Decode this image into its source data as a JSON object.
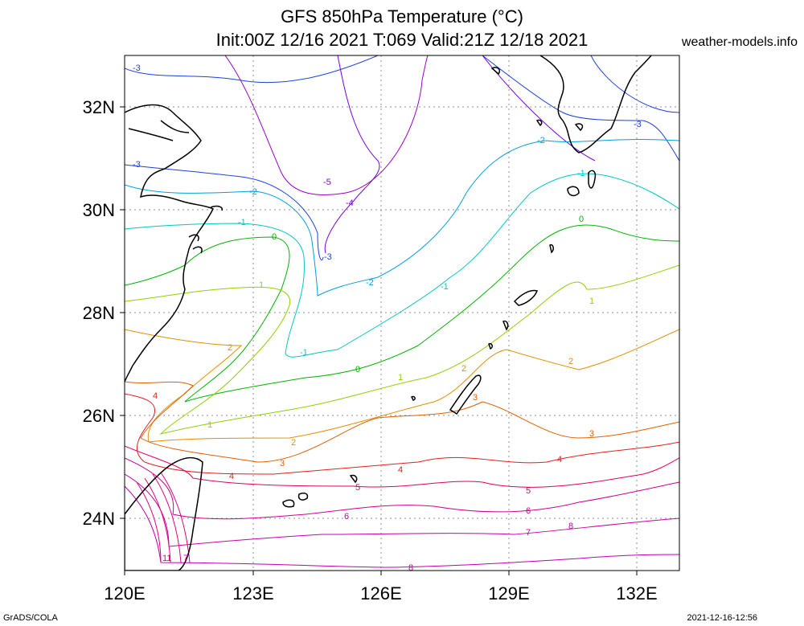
{
  "title_line1": "GFS 850hPa Temperature (°C)",
  "title_line2": "Init:00Z 12/16 2021 T:069 Valid:21Z 12/18 2021",
  "site": "weather-models.info",
  "footer_left": "GrADS/COLA",
  "footer_right": "2021-12-16-12:56",
  "lat_ticks": [
    "32N",
    "30N",
    "28N",
    "26N",
    "24N"
  ],
  "lon_ticks": [
    "120E",
    "123E",
    "126E",
    "129E",
    "132E"
  ],
  "colors": {
    "minus5": "#9a00c8",
    "minus4": "#7a00d8",
    "minus3": "#2040d8",
    "minus2": "#00a0d8",
    "minus1": "#00c8c0",
    "zero": "#00b400",
    "one": "#90d000",
    "two": "#e09000",
    "three": "#e06000",
    "four": "#e02020",
    "five": "#e00060",
    "six": "#d00090",
    "seven": "#c800a8",
    "eight": "#c000b0",
    "coast": "#000000",
    "grid": "#909090"
  },
  "contour_labels": [
    {
      "id": "l-5",
      "text": "-5"
    },
    {
      "id": "l-4",
      "text": "-4"
    },
    {
      "id": "l-3a",
      "text": "-3"
    },
    {
      "id": "l-3b",
      "text": "-3"
    },
    {
      "id": "l-3c",
      "text": "-3"
    },
    {
      "id": "l-3d",
      "text": "-3"
    },
    {
      "id": "l-2a",
      "text": "-2"
    },
    {
      "id": "l-2b",
      "text": "-2"
    },
    {
      "id": "l-2c",
      "text": "-2"
    },
    {
      "id": "l-1a",
      "text": "-1"
    },
    {
      "id": "l-1b",
      "text": "-1"
    },
    {
      "id": "l-1c",
      "text": "-1"
    },
    {
      "id": "l-1d",
      "text": "-1"
    },
    {
      "id": "l0a",
      "text": "0"
    },
    {
      "id": "l0b",
      "text": "0"
    },
    {
      "id": "l0c",
      "text": "0"
    },
    {
      "id": "l1a",
      "text": "1"
    },
    {
      "id": "l1b",
      "text": "1"
    },
    {
      "id": "l1c",
      "text": "1"
    },
    {
      "id": "l1d",
      "text": "1"
    },
    {
      "id": "l2a",
      "text": "2"
    },
    {
      "id": "l2b",
      "text": "2"
    },
    {
      "id": "l2c",
      "text": "2"
    },
    {
      "id": "l2d",
      "text": "2"
    },
    {
      "id": "l3a",
      "text": "3"
    },
    {
      "id": "l3b",
      "text": "3"
    },
    {
      "id": "l3c",
      "text": "3"
    },
    {
      "id": "l4a",
      "text": "4"
    },
    {
      "id": "l4b",
      "text": "4"
    },
    {
      "id": "l4c",
      "text": "4"
    },
    {
      "id": "l4d",
      "text": "4"
    },
    {
      "id": "l5a",
      "text": "5"
    },
    {
      "id": "l5b",
      "text": "5"
    },
    {
      "id": "l6a",
      "text": "6"
    },
    {
      "id": "l6b",
      "text": "6"
    },
    {
      "id": "l7a",
      "text": "7"
    },
    {
      "id": "l7b",
      "text": "7"
    },
    {
      "id": "l8a",
      "text": "8"
    },
    {
      "id": "l8b",
      "text": "8"
    },
    {
      "id": "l11",
      "text": "11"
    }
  ]
}
